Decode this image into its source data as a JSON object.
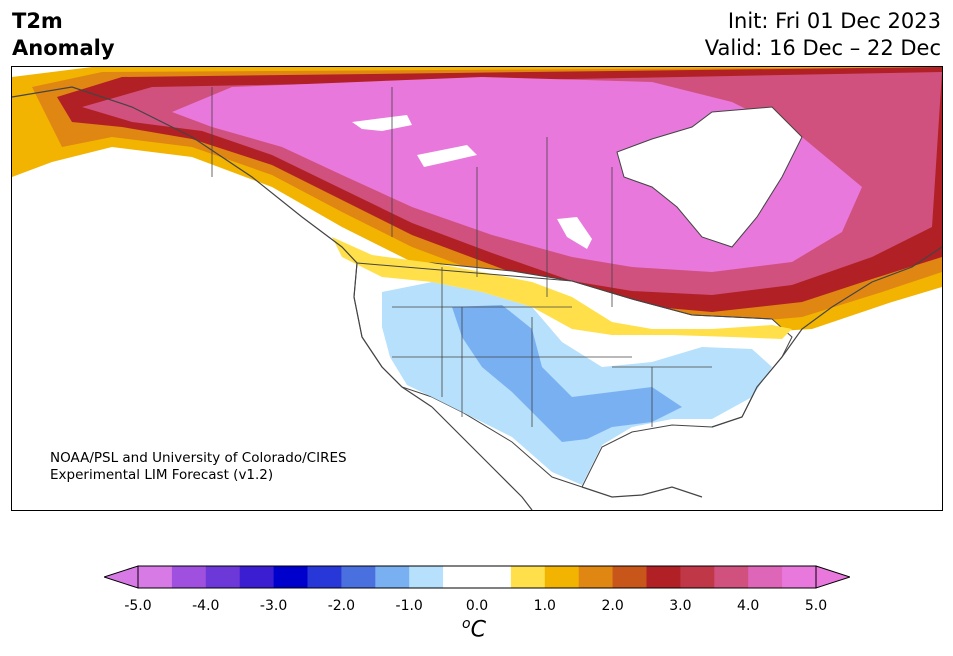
{
  "header": {
    "title_line1": "T2m",
    "title_line2": "Anomaly",
    "init": "Init: Fri 01 Dec 2023",
    "valid": "Valid: 16 Dec – 22 Dec"
  },
  "credit": {
    "line1": "NOAA/PSL and University of Colorado/CIRES",
    "line2": "Experimental LIM Forecast (v1.2)"
  },
  "colorbar": {
    "colors": [
      "#d77ae6",
      "#a050de",
      "#6d38d8",
      "#3b1ed2",
      "#0000cc",
      "#2838d8",
      "#4a70e0",
      "#78b0f2",
      "#b6e0fb",
      "#ffffff",
      "#ffffff",
      "#ffe04a",
      "#f2b400",
      "#e08612",
      "#c8561a",
      "#b02024",
      "#c03848",
      "#d0507e",
      "#de66b8",
      "#e878dc"
    ],
    "ticks": [
      "-5.0",
      "-4.0",
      "-3.0",
      "-2.0",
      "-1.0",
      "0.0",
      "1.0",
      "2.0",
      "3.0",
      "4.0",
      "5.0"
    ],
    "unit_base": "C",
    "unit_sup": "o"
  }
}
